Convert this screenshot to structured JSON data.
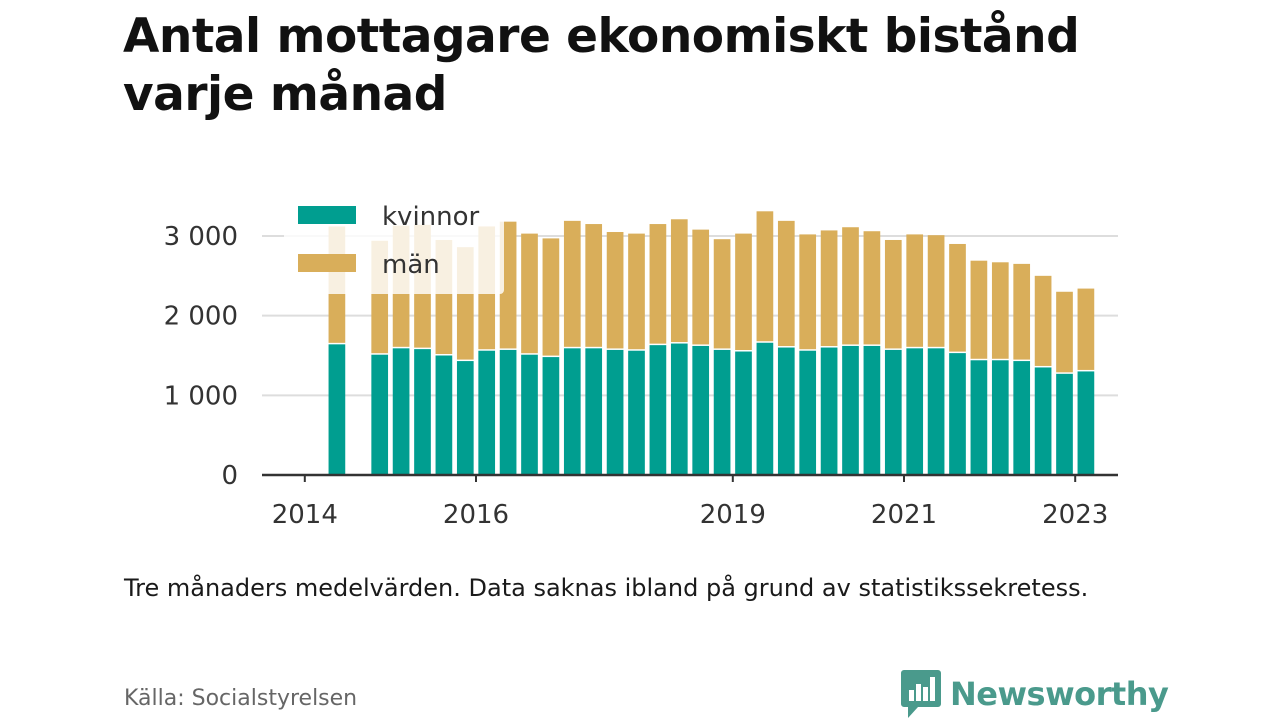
{
  "title": "Antal mottagare ekonomiskt bistånd varje månad",
  "note": "Tre månaders medelvärden. Data saknas ibland på grund av statistikssekretess.",
  "source": "Källa: Socialstyrelsen",
  "brand": "Newsworthy",
  "colors": {
    "kvinnor": "#009e90",
    "man": "#d9ae5a",
    "grid": "#dddddd",
    "axis": "#333333",
    "text": "#333333"
  },
  "chart_data": {
    "type": "bar",
    "stacked": true,
    "legend_position": "top-left",
    "grid": true,
    "x_tick_labels": [
      "2014",
      "2016",
      "2019",
      "2021",
      "2023"
    ],
    "x_ticks": [
      2014.0,
      2016.0,
      2019.0,
      2021.0,
      2023.0
    ],
    "y_tick_labels": [
      "0",
      "1 000",
      "2 000",
      "3 000"
    ],
    "y_ticks": [
      0,
      1000,
      2000,
      3000
    ],
    "ylim": [
      0,
      3000
    ],
    "xlim": [
      2013.5,
      2023.5
    ],
    "x": [
      2014.375,
      2014.875,
      2015.125,
      2015.375,
      2015.625,
      2015.875,
      2016.125,
      2016.375,
      2016.625,
      2016.875,
      2017.125,
      2017.375,
      2017.625,
      2017.875,
      2018.125,
      2018.375,
      2018.625,
      2018.875,
      2019.125,
      2019.375,
      2019.625,
      2019.875,
      2020.125,
      2020.375,
      2020.625,
      2020.875,
      2021.125,
      2021.375,
      2021.625,
      2021.875,
      2022.125,
      2022.375,
      2022.625,
      2022.875,
      2023.125
    ],
    "series": [
      {
        "name": "kvinnor",
        "values": [
          1640,
          1510,
          1590,
          1580,
          1500,
          1430,
          1560,
          1570,
          1510,
          1480,
          1590,
          1590,
          1570,
          1560,
          1630,
          1650,
          1620,
          1570,
          1550,
          1660,
          1600,
          1560,
          1600,
          1620,
          1620,
          1570,
          1590,
          1590,
          1530,
          1440,
          1440,
          1430,
          1350,
          1270,
          1300
        ]
      },
      {
        "name": "män",
        "values": [
          1480,
          1430,
          1540,
          1560,
          1450,
          1430,
          1560,
          1610,
          1520,
          1490,
          1600,
          1560,
          1480,
          1470,
          1520,
          1560,
          1460,
          1390,
          1480,
          1650,
          1590,
          1460,
          1470,
          1490,
          1440,
          1380,
          1430,
          1420,
          1370,
          1250,
          1230,
          1220,
          1150,
          1030,
          1040
        ]
      }
    ]
  }
}
